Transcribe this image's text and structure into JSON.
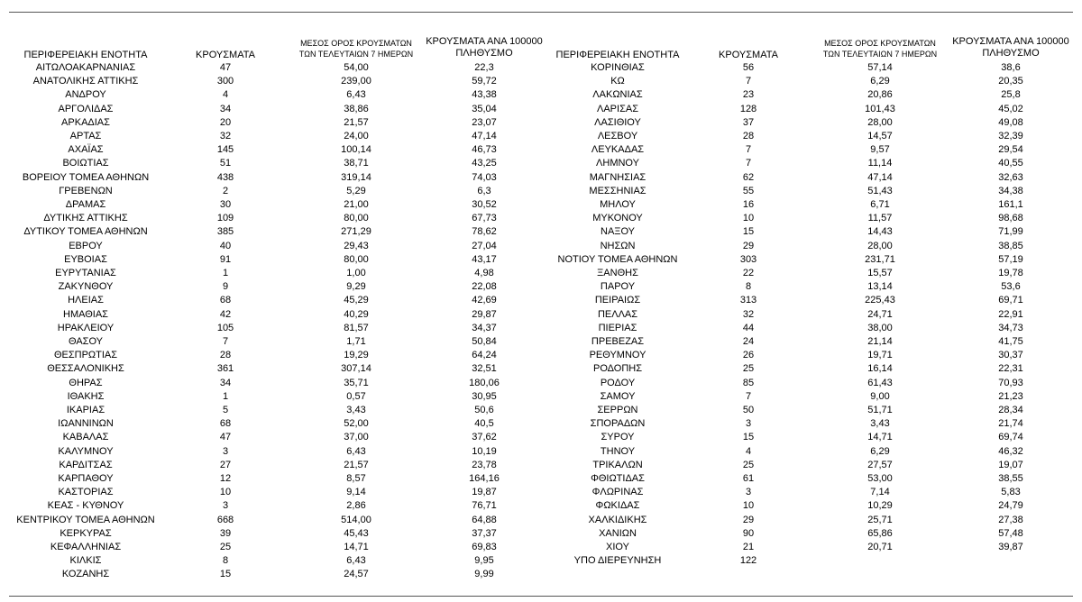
{
  "headers": {
    "left": [
      "ΠΕΡΙΦΕΡΕΙΑΚΗ ΕΝΟΤΗΤΑ",
      "ΚΡΟΥΣΜΑΤΑ",
      "ΜΕΣΟΣ ΟΡΟΣ ΚΡΟΥΣΜΑΤΩΝ ΤΩΝ ΤΕΛΕΥΤΑΙΩΝ 7 ΗΜΕΡΩΝ",
      "ΚΡΟΥΣΜΑΤΑ ΑΝΑ 100000 ΠΛΗΘΥΣΜΟ"
    ],
    "right": [
      "ΠΕΡΙΦΕΡΕΙΑΚΗ ΕΝΟΤΗΤΑ",
      "ΚΡΟΥΣΜΑΤΑ",
      "ΜΕΣΟΣ ΟΡΟΣ ΚΡΟΥΣΜΑΤΩΝ ΤΩΝ ΤΕΛΕΥΤΑΙΩΝ 7 ΗΜΕΡΩΝ",
      "ΚΡΟΥΣΜΑΤΑ ΑΝΑ 100000 ΠΛΗΘΥΣΜΟ"
    ]
  },
  "left_rows": [
    [
      "ΑΙΤΩΛΟΑΚΑΡΝΑΝΙΑΣ",
      "47",
      "54,00",
      "22,3"
    ],
    [
      "ΑΝΑΤΟΛΙΚΗΣ ΑΤΤΙΚΗΣ",
      "300",
      "239,00",
      "59,72"
    ],
    [
      "ΑΝΔΡΟΥ",
      "4",
      "6,43",
      "43,38"
    ],
    [
      "ΑΡΓΟΛΙΔΑΣ",
      "34",
      "38,86",
      "35,04"
    ],
    [
      "ΑΡΚΑΔΙΑΣ",
      "20",
      "21,57",
      "23,07"
    ],
    [
      "ΑΡΤΑΣ",
      "32",
      "24,00",
      "47,14"
    ],
    [
      "ΑΧΑΪΑΣ",
      "145",
      "100,14",
      "46,73"
    ],
    [
      "ΒΟΙΩΤΙΑΣ",
      "51",
      "38,71",
      "43,25"
    ],
    [
      "ΒΟΡΕΙΟΥ ΤΟΜΕΑ ΑΘΗΝΩΝ",
      "438",
      "319,14",
      "74,03"
    ],
    [
      "ΓΡΕΒΕΝΩΝ",
      "2",
      "5,29",
      "6,3"
    ],
    [
      "ΔΡΑΜΑΣ",
      "30",
      "21,00",
      "30,52"
    ],
    [
      "ΔΥΤΙΚΗΣ ΑΤΤΙΚΗΣ",
      "109",
      "80,00",
      "67,73"
    ],
    [
      "ΔΥΤΙΚΟΥ ΤΟΜΕΑ ΑΘΗΝΩΝ",
      "385",
      "271,29",
      "78,62"
    ],
    [
      "ΕΒΡΟΥ",
      "40",
      "29,43",
      "27,04"
    ],
    [
      "ΕΥΒΟΙΑΣ",
      "91",
      "80,00",
      "43,17"
    ],
    [
      "ΕΥΡΥΤΑΝΙΑΣ",
      "1",
      "1,00",
      "4,98"
    ],
    [
      "ΖΑΚΥΝΘΟΥ",
      "9",
      "9,29",
      "22,08"
    ],
    [
      "ΗΛΕΙΑΣ",
      "68",
      "45,29",
      "42,69"
    ],
    [
      "ΗΜΑΘΙΑΣ",
      "42",
      "40,29",
      "29,87"
    ],
    [
      "ΗΡΑΚΛΕΙΟΥ",
      "105",
      "81,57",
      "34,37"
    ],
    [
      "ΘΑΣΟΥ",
      "7",
      "1,71",
      "50,84"
    ],
    [
      "ΘΕΣΠΡΩΤΙΑΣ",
      "28",
      "19,29",
      "64,24"
    ],
    [
      "ΘΕΣΣΑΛΟΝΙΚΗΣ",
      "361",
      "307,14",
      "32,51"
    ],
    [
      "ΘΗΡΑΣ",
      "34",
      "35,71",
      "180,06"
    ],
    [
      "ΙΘΑΚΗΣ",
      "1",
      "0,57",
      "30,95"
    ],
    [
      "ΙΚΑΡΙΑΣ",
      "5",
      "3,43",
      "50,6"
    ],
    [
      "ΙΩΑΝΝΙΝΩΝ",
      "68",
      "52,00",
      "40,5"
    ],
    [
      "ΚΑΒΑΛΑΣ",
      "47",
      "37,00",
      "37,62"
    ],
    [
      "ΚΑΛΥΜΝΟΥ",
      "3",
      "6,43",
      "10,19"
    ],
    [
      "ΚΑΡΔΙΤΣΑΣ",
      "27",
      "21,57",
      "23,78"
    ],
    [
      "ΚΑΡΠΑΘΟΥ",
      "12",
      "8,57",
      "164,16"
    ],
    [
      "ΚΑΣΤΟΡΙΑΣ",
      "10",
      "9,14",
      "19,87"
    ],
    [
      "ΚΕΑΣ - ΚΥΘΝΟΥ",
      "3",
      "2,86",
      "76,71"
    ],
    [
      "ΚΕΝΤΡΙΚΟΥ ΤΟΜΕΑ ΑΘΗΝΩΝ",
      "668",
      "514,00",
      "64,88"
    ],
    [
      "ΚΕΡΚΥΡΑΣ",
      "39",
      "45,43",
      "37,37"
    ],
    [
      "ΚΕΦΑΛΛΗΝΙΑΣ",
      "25",
      "14,71",
      "69,83"
    ],
    [
      "ΚΙΛΚΙΣ",
      "8",
      "6,43",
      "9,95"
    ],
    [
      "ΚΟΖΑΝΗΣ",
      "15",
      "24,57",
      "9,99"
    ]
  ],
  "right_rows": [
    [
      "ΚΟΡΙΝΘΙΑΣ",
      "56",
      "57,14",
      "38,6"
    ],
    [
      "ΚΩ",
      "7",
      "6,29",
      "20,35"
    ],
    [
      "ΛΑΚΩΝΙΑΣ",
      "23",
      "20,86",
      "25,8"
    ],
    [
      "ΛΑΡΙΣΑΣ",
      "128",
      "101,43",
      "45,02"
    ],
    [
      "ΛΑΣΙΘΙΟΥ",
      "37",
      "28,00",
      "49,08"
    ],
    [
      "ΛΕΣΒΟΥ",
      "28",
      "14,57",
      "32,39"
    ],
    [
      "ΛΕΥΚΑΔΑΣ",
      "7",
      "9,57",
      "29,54"
    ],
    [
      "ΛΗΜΝΟΥ",
      "7",
      "11,14",
      "40,55"
    ],
    [
      "ΜΑΓΝΗΣΙΑΣ",
      "62",
      "47,14",
      "32,63"
    ],
    [
      "ΜΕΣΣΗΝΙΑΣ",
      "55",
      "51,43",
      "34,38"
    ],
    [
      "ΜΗΛΟΥ",
      "16",
      "6,71",
      "161,1"
    ],
    [
      "ΜΥΚΟΝΟΥ",
      "10",
      "11,57",
      "98,68"
    ],
    [
      "ΝΑΞΟΥ",
      "15",
      "14,43",
      "71,99"
    ],
    [
      "ΝΗΣΩΝ",
      "29",
      "28,00",
      "38,85"
    ],
    [
      "ΝΟΤΙΟΥ ΤΟΜΕΑ ΑΘΗΝΩΝ",
      "303",
      "231,71",
      "57,19"
    ],
    [
      "ΞΑΝΘΗΣ",
      "22",
      "15,57",
      "19,78"
    ],
    [
      "ΠΑΡΟΥ",
      "8",
      "13,14",
      "53,6"
    ],
    [
      "ΠΕΙΡΑΙΩΣ",
      "313",
      "225,43",
      "69,71"
    ],
    [
      "ΠΕΛΛΑΣ",
      "32",
      "24,71",
      "22,91"
    ],
    [
      "ΠΙΕΡΙΑΣ",
      "44",
      "38,00",
      "34,73"
    ],
    [
      "ΠΡΕΒΕΖΑΣ",
      "24",
      "21,14",
      "41,75"
    ],
    [
      "ΡΕΘΥΜΝΟΥ",
      "26",
      "19,71",
      "30,37"
    ],
    [
      "ΡΟΔΟΠΗΣ",
      "25",
      "16,14",
      "22,31"
    ],
    [
      "ΡΟΔΟΥ",
      "85",
      "61,43",
      "70,93"
    ],
    [
      "ΣΑΜΟΥ",
      "7",
      "9,00",
      "21,23"
    ],
    [
      "ΣΕΡΡΩΝ",
      "50",
      "51,71",
      "28,34"
    ],
    [
      "ΣΠΟΡΑΔΩΝ",
      "3",
      "3,43",
      "21,74"
    ],
    [
      "ΣΥΡΟΥ",
      "15",
      "14,71",
      "69,74"
    ],
    [
      "ΤΗΝΟΥ",
      "4",
      "6,29",
      "46,32"
    ],
    [
      "ΤΡΙΚΑΛΩΝ",
      "25",
      "27,57",
      "19,07"
    ],
    [
      "ΦΘΙΩΤΙΔΑΣ",
      "61",
      "53,00",
      "38,55"
    ],
    [
      "ΦΛΩΡΙΝΑΣ",
      "3",
      "7,14",
      "5,83"
    ],
    [
      "ΦΩΚΙΔΑΣ",
      "10",
      "10,29",
      "24,79"
    ],
    [
      "ΧΑΛΚΙΔΙΚΗΣ",
      "29",
      "25,71",
      "27,38"
    ],
    [
      "ΧΑΝΙΩΝ",
      "90",
      "65,86",
      "57,48"
    ],
    [
      "ΧΙΟΥ",
      "21",
      "20,71",
      "39,87"
    ],
    [
      "ΥΠΟ ΔΙΕΡΕΥΝΗΣΗ",
      "122"
    ]
  ]
}
